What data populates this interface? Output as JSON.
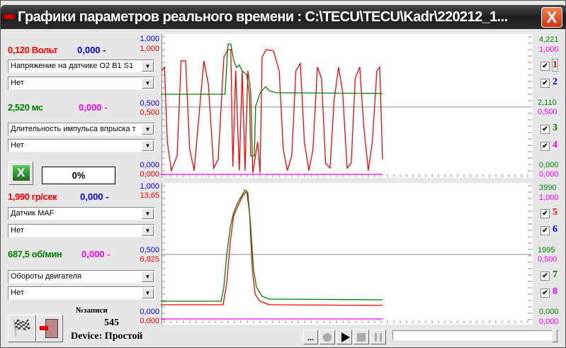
{
  "window": {
    "title": "Графики параметров реального времени : C:\\TECU\\TECU\\Kadr\\220212_1...",
    "close": "X"
  },
  "channels": [
    {
      "value": "0,120 Вольт",
      "value_color": "#ff0000",
      "aux": "0,000 -",
      "aux_color": "#0000ff",
      "param": "Напряжение на датчике О2 B1 S1",
      "param2": "Нет"
    },
    {
      "value": "2,520 мс",
      "value_color": "#008000",
      "aux": "0,000 -",
      "aux_color": "#ff00ff",
      "param": "Длительность импульса впрыска т",
      "param2": "Нет"
    },
    {
      "value": "1,990 гр/сек",
      "value_color": "#ff0000",
      "aux": "0,000 -",
      "aux_color": "#0000ff",
      "param": "Датчик MAF",
      "param2": "Нет"
    },
    {
      "value": "687,5 об/мин",
      "value_color": "#008000",
      "aux": "0,000 -",
      "aux_color": "#ff00ff",
      "param": "Обороты двигателя",
      "param2": "Нет"
    }
  ],
  "export": {
    "icon": "excel-icon",
    "progress": "0%"
  },
  "records": {
    "label": "№записи",
    "count": "545",
    "device": "Device: Простой"
  },
  "axes": {
    "top_left": {
      "blue": [
        "1,000",
        "0,500",
        "0,000"
      ],
      "red": [
        "1,000",
        "0,500",
        "0,000"
      ]
    },
    "top_right": {
      "green": [
        "4,221",
        "2,110",
        "0,000"
      ],
      "magenta": [
        "1,000",
        "0,500",
        "0,000"
      ]
    },
    "bottom_left": {
      "blue": [
        "1,000",
        "0,500",
        "0,000"
      ],
      "red": [
        "13,65",
        "6,825",
        "0,000"
      ]
    },
    "bottom_right": {
      "green": [
        "3990",
        "1995",
        "0,000"
      ],
      "magenta": [
        "1,000",
        "0,500",
        "0,000"
      ]
    }
  },
  "series_toggles": [
    {
      "label": "1",
      "color": "#ff0000",
      "checked": true
    },
    {
      "label": "2",
      "color": "#0000ff",
      "checked": true
    },
    {
      "label": "3",
      "color": "#008000",
      "checked": true
    },
    {
      "label": "4",
      "color": "#ff00ff",
      "checked": true
    },
    {
      "label": "5",
      "color": "#ff0000",
      "checked": true
    },
    {
      "label": "6",
      "color": "#0000ff",
      "checked": true
    },
    {
      "label": "7",
      "color": "#008000",
      "checked": true
    },
    {
      "label": "8",
      "color": "#ff00ff",
      "checked": true
    }
  ],
  "playback": {
    "more": "...",
    "record": "record-icon",
    "play": "play-icon",
    "stop": "stop-icon",
    "pause": "pause-icon",
    "position": 1.0
  },
  "chart_data": [
    {
      "type": "line",
      "xlim": [
        0,
        545
      ],
      "series": [
        {
          "id": "1",
          "color": "#ff0000",
          "ylim": [
            0,
            1
          ],
          "points": [
            [
              2,
              0.83
            ],
            [
              9,
              0.86
            ],
            [
              16,
              0.26
            ],
            [
              26,
              0.03
            ],
            [
              40,
              0.15
            ],
            [
              50,
              0.91
            ],
            [
              61,
              0.91
            ],
            [
              71,
              0.2
            ],
            [
              82,
              0.03
            ],
            [
              96,
              0.55
            ],
            [
              106,
              0.91
            ],
            [
              117,
              0.72
            ],
            [
              130,
              0.05
            ],
            [
              141,
              0.12
            ],
            [
              155,
              0.94
            ],
            [
              165,
              1.0
            ],
            [
              172,
              1.0
            ],
            [
              177,
              0.06
            ],
            [
              184,
              0.83
            ],
            [
              193,
              0.03
            ],
            [
              200,
              0.83
            ],
            [
              207,
              0.03
            ],
            [
              214,
              0.83
            ],
            [
              221,
              0.66
            ],
            [
              226,
              0.01
            ],
            [
              238,
              0.26
            ],
            [
              244,
              0.01
            ],
            [
              249,
              0.94
            ],
            [
              259,
              1.0
            ],
            [
              277,
              0.99
            ],
            [
              291,
              0.83
            ],
            [
              301,
              0.2
            ],
            [
              311,
              0.03
            ],
            [
              322,
              0.15
            ],
            [
              332,
              0.83
            ],
            [
              343,
              0.89
            ],
            [
              353,
              0.26
            ],
            [
              364,
              0.03
            ],
            [
              374,
              0.2
            ],
            [
              385,
              0.86
            ],
            [
              395,
              0.77
            ],
            [
              405,
              0.09
            ],
            [
              416,
              0.05
            ],
            [
              426,
              0.6
            ],
            [
              437,
              0.86
            ],
            [
              447,
              0.66
            ],
            [
              458,
              0.05
            ],
            [
              468,
              0.09
            ],
            [
              478,
              0.77
            ],
            [
              489,
              0.86
            ],
            [
              499,
              0.38
            ],
            [
              510,
              0.03
            ],
            [
              520,
              0.26
            ],
            [
              531,
              0.83
            ],
            [
              538,
              0.86
            ],
            [
              545,
              0.12
            ]
          ]
        },
        {
          "id": "3",
          "color": "#008000",
          "ylim": [
            0,
            4.221
          ],
          "points": [
            [
              0,
              2.71
            ],
            [
              158,
              2.71
            ],
            [
              165,
              4.41
            ],
            [
              172,
              4.41
            ],
            [
              179,
              3.86
            ],
            [
              186,
              3.62
            ],
            [
              193,
              3.7
            ],
            [
              200,
              3.5
            ],
            [
              211,
              3.38
            ],
            [
              218,
              2.66
            ],
            [
              221,
              0.62
            ],
            [
              230,
              0.62
            ],
            [
              233,
              2.3
            ],
            [
              245,
              2.78
            ],
            [
              258,
              2.97
            ],
            [
              266,
              2.83
            ],
            [
              284,
              2.76
            ],
            [
              545,
              2.74
            ]
          ]
        },
        {
          "id": "4",
          "color": "#ff00ff",
          "ylim": [
            0,
            1
          ],
          "points": [
            [
              0,
              0
            ],
            [
              545,
              0
            ]
          ]
        }
      ]
    },
    {
      "type": "line",
      "xlim": [
        0,
        545
      ],
      "series": [
        {
          "id": "5",
          "color": "#ff0000",
          "ylim": [
            0,
            13.65
          ],
          "points": [
            [
              0,
              1.5
            ],
            [
              153,
              1.5
            ],
            [
              162,
              3.75
            ],
            [
              171,
              8.25
            ],
            [
              179,
              10.9
            ],
            [
              190,
              12.0
            ],
            [
              200,
              12.9
            ],
            [
              207,
              13.35
            ],
            [
              211,
              13.5
            ],
            [
              218,
              11.25
            ],
            [
              225,
              5.25
            ],
            [
              232,
              2.6
            ],
            [
              243,
              1.9
            ],
            [
              266,
              1.5
            ],
            [
              545,
              1.43
            ]
          ]
        },
        {
          "id": "7",
          "color": "#008000",
          "ylim": [
            0,
            3990
          ],
          "points": [
            [
              0,
              548
            ],
            [
              148,
              548
            ],
            [
              155,
              986
            ],
            [
              162,
              1973
            ],
            [
              171,
              2850
            ],
            [
              179,
              3288
            ],
            [
              190,
              3617
            ],
            [
              200,
              3836
            ],
            [
              207,
              3990
            ],
            [
              214,
              3902
            ],
            [
              221,
              2850
            ],
            [
              228,
              1534
            ],
            [
              235,
              986
            ],
            [
              249,
              701
            ],
            [
              266,
              614
            ],
            [
              545,
              592
            ]
          ]
        },
        {
          "id": "8",
          "color": "#ff00ff",
          "ylim": [
            0,
            1
          ],
          "points": [
            [
              0,
              0
            ],
            [
              545,
              0
            ]
          ]
        }
      ]
    }
  ]
}
